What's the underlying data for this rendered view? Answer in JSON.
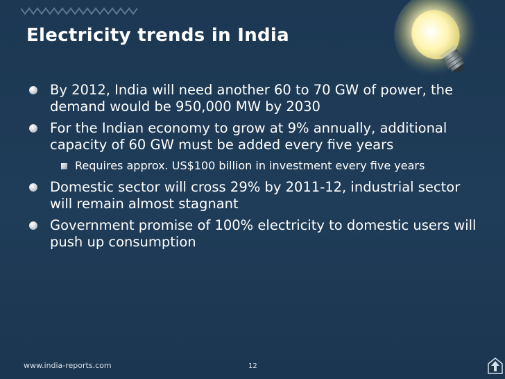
{
  "slide": {
    "title": "Electricity trends in India",
    "bullets": [
      {
        "level": 1,
        "text": "By 2012, India will need another 60 to 70 GW of power, the demand would be 950,000 MW by 2030"
      },
      {
        "level": 1,
        "text": "For the Indian economy to grow at 9% annually, additional capacity of 60 GW must be added every five years"
      },
      {
        "level": 2,
        "text": "Requires approx. US$100 billion in investment every five years"
      },
      {
        "level": 1,
        "text": "Domestic sector will cross 29% by 2011-12, industrial sector will remain almost stagnant"
      },
      {
        "level": 1,
        "text": "Government promise of 100% electricity to domestic users will push up consumption"
      }
    ]
  },
  "footer": {
    "url": "www.india-reports.com",
    "page_number": "12"
  },
  "icons": {
    "bulb": "light-bulb-icon",
    "logo": "up-arrow-logo-icon",
    "bullet_round": "round-bullet-icon",
    "bullet_square": "square-bullet-icon"
  },
  "colors": {
    "background": "#1e3a55",
    "text": "#ffffff",
    "bulb_glow": "#fff2a8"
  }
}
